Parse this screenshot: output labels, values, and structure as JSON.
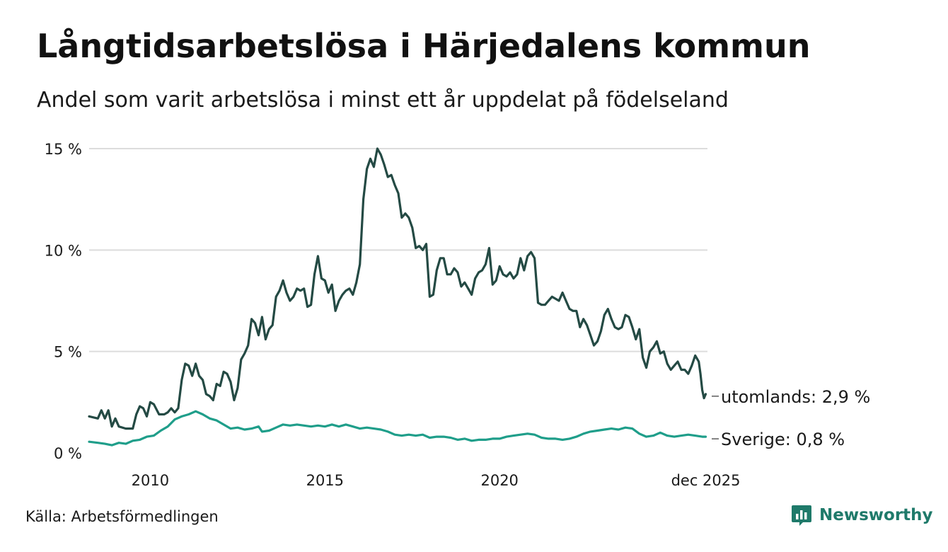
{
  "title": "Långtidsarbetslösa i Härjedalens kommun",
  "subtitle": "Andel som varit arbetslösa i minst ett år uppdelat på födelseland",
  "source": "Källa: Arbetsförmedlingen",
  "brand": {
    "name": "Newsworthy",
    "icon": "newsworthy-logo-icon",
    "color": "#1f7a6a"
  },
  "chart_data": {
    "type": "line",
    "title": "Långtidsarbetslösa i Härjedalens kommun",
    "subtitle": "Andel som varit arbetslösa i minst ett år uppdelat på födelseland",
    "xlabel": "",
    "ylabel": "",
    "ylim": [
      0,
      15
    ],
    "xlim": [
      2008.25,
      2025.95
    ],
    "y_ticks": [
      {
        "value": 0,
        "label": "0 %"
      },
      {
        "value": 5,
        "label": "5 %"
      },
      {
        "value": 10,
        "label": "10 %"
      },
      {
        "value": 15,
        "label": "15 %"
      }
    ],
    "x_ticks": [
      {
        "value": 2010,
        "label": "2010"
      },
      {
        "value": 2015,
        "label": "2015"
      },
      {
        "value": 2020,
        "label": "2020"
      },
      {
        "value": 2025.9,
        "label": "dec 2025"
      }
    ],
    "grid": true,
    "series": [
      {
        "name": "utomlands",
        "end_label": "utomlands: 2,9 %",
        "color": "#244a44",
        "points": [
          [
            2008.25,
            1.8
          ],
          [
            2008.5,
            1.7
          ],
          [
            2008.6,
            2.1
          ],
          [
            2008.7,
            1.7
          ],
          [
            2008.8,
            2.1
          ],
          [
            2008.9,
            1.3
          ],
          [
            2009.0,
            1.7
          ],
          [
            2009.1,
            1.3
          ],
          [
            2009.3,
            1.2
          ],
          [
            2009.5,
            1.2
          ],
          [
            2009.6,
            1.9
          ],
          [
            2009.7,
            2.3
          ],
          [
            2009.8,
            2.2
          ],
          [
            2009.9,
            1.8
          ],
          [
            2010.0,
            2.5
          ],
          [
            2010.1,
            2.4
          ],
          [
            2010.25,
            1.9
          ],
          [
            2010.4,
            1.9
          ],
          [
            2010.5,
            2.0
          ],
          [
            2010.6,
            2.2
          ],
          [
            2010.7,
            2.0
          ],
          [
            2010.8,
            2.2
          ],
          [
            2010.9,
            3.6
          ],
          [
            2011.0,
            4.4
          ],
          [
            2011.1,
            4.3
          ],
          [
            2011.2,
            3.8
          ],
          [
            2011.3,
            4.4
          ],
          [
            2011.4,
            3.8
          ],
          [
            2011.5,
            3.6
          ],
          [
            2011.6,
            2.9
          ],
          [
            2011.7,
            2.8
          ],
          [
            2011.8,
            2.6
          ],
          [
            2011.9,
            3.4
          ],
          [
            2012.0,
            3.3
          ],
          [
            2012.1,
            4.0
          ],
          [
            2012.2,
            3.9
          ],
          [
            2012.3,
            3.5
          ],
          [
            2012.4,
            2.6
          ],
          [
            2012.5,
            3.2
          ],
          [
            2012.6,
            4.6
          ],
          [
            2012.7,
            4.9
          ],
          [
            2012.8,
            5.3
          ],
          [
            2012.9,
            6.6
          ],
          [
            2013.0,
            6.4
          ],
          [
            2013.1,
            5.8
          ],
          [
            2013.2,
            6.7
          ],
          [
            2013.3,
            5.6
          ],
          [
            2013.4,
            6.1
          ],
          [
            2013.5,
            6.3
          ],
          [
            2013.6,
            7.7
          ],
          [
            2013.7,
            8.0
          ],
          [
            2013.8,
            8.5
          ],
          [
            2013.9,
            7.9
          ],
          [
            2014.0,
            7.5
          ],
          [
            2014.1,
            7.7
          ],
          [
            2014.2,
            8.1
          ],
          [
            2014.3,
            8.0
          ],
          [
            2014.4,
            8.1
          ],
          [
            2014.5,
            7.2
          ],
          [
            2014.6,
            7.3
          ],
          [
            2014.7,
            8.8
          ],
          [
            2014.8,
            9.7
          ],
          [
            2014.9,
            8.6
          ],
          [
            2015.0,
            8.5
          ],
          [
            2015.1,
            7.9
          ],
          [
            2015.2,
            8.3
          ],
          [
            2015.3,
            7.0
          ],
          [
            2015.4,
            7.5
          ],
          [
            2015.5,
            7.8
          ],
          [
            2015.6,
            8.0
          ],
          [
            2015.7,
            8.1
          ],
          [
            2015.8,
            7.8
          ],
          [
            2015.9,
            8.4
          ],
          [
            2016.0,
            9.3
          ],
          [
            2016.1,
            12.5
          ],
          [
            2016.2,
            14.0
          ],
          [
            2016.3,
            14.5
          ],
          [
            2016.4,
            14.1
          ],
          [
            2016.5,
            15.0
          ],
          [
            2016.6,
            14.7
          ],
          [
            2016.7,
            14.2
          ],
          [
            2016.8,
            13.6
          ],
          [
            2016.9,
            13.7
          ],
          [
            2017.0,
            13.2
          ],
          [
            2017.1,
            12.8
          ],
          [
            2017.2,
            11.6
          ],
          [
            2017.3,
            11.8
          ],
          [
            2017.4,
            11.6
          ],
          [
            2017.5,
            11.1
          ],
          [
            2017.6,
            10.1
          ],
          [
            2017.7,
            10.2
          ],
          [
            2017.8,
            10.0
          ],
          [
            2017.9,
            10.3
          ],
          [
            2018.0,
            7.7
          ],
          [
            2018.1,
            7.8
          ],
          [
            2018.2,
            9.0
          ],
          [
            2018.3,
            9.6
          ],
          [
            2018.4,
            9.6
          ],
          [
            2018.5,
            8.8
          ],
          [
            2018.6,
            8.8
          ],
          [
            2018.7,
            9.1
          ],
          [
            2018.8,
            8.9
          ],
          [
            2018.9,
            8.2
          ],
          [
            2019.0,
            8.4
          ],
          [
            2019.1,
            8.1
          ],
          [
            2019.2,
            7.8
          ],
          [
            2019.3,
            8.6
          ],
          [
            2019.4,
            8.9
          ],
          [
            2019.5,
            9.0
          ],
          [
            2019.6,
            9.3
          ],
          [
            2019.7,
            10.1
          ],
          [
            2019.8,
            8.3
          ],
          [
            2019.9,
            8.5
          ],
          [
            2020.0,
            9.2
          ],
          [
            2020.1,
            8.8
          ],
          [
            2020.2,
            8.7
          ],
          [
            2020.3,
            8.9
          ],
          [
            2020.4,
            8.6
          ],
          [
            2020.5,
            8.8
          ],
          [
            2020.6,
            9.6
          ],
          [
            2020.7,
            9.0
          ],
          [
            2020.8,
            9.7
          ],
          [
            2020.9,
            9.9
          ],
          [
            2021.0,
            9.6
          ],
          [
            2021.1,
            7.4
          ],
          [
            2021.2,
            7.3
          ],
          [
            2021.3,
            7.3
          ],
          [
            2021.4,
            7.5
          ],
          [
            2021.5,
            7.7
          ],
          [
            2021.6,
            7.6
          ],
          [
            2021.7,
            7.5
          ],
          [
            2021.8,
            7.9
          ],
          [
            2021.9,
            7.5
          ],
          [
            2022.0,
            7.1
          ],
          [
            2022.1,
            7.0
          ],
          [
            2022.2,
            7.0
          ],
          [
            2022.3,
            6.2
          ],
          [
            2022.4,
            6.6
          ],
          [
            2022.5,
            6.3
          ],
          [
            2022.6,
            5.8
          ],
          [
            2022.7,
            5.3
          ],
          [
            2022.8,
            5.5
          ],
          [
            2022.9,
            6.0
          ],
          [
            2023.0,
            6.8
          ],
          [
            2023.1,
            7.1
          ],
          [
            2023.2,
            6.6
          ],
          [
            2023.3,
            6.2
          ],
          [
            2023.4,
            6.1
          ],
          [
            2023.5,
            6.2
          ],
          [
            2023.6,
            6.8
          ],
          [
            2023.7,
            6.7
          ],
          [
            2023.8,
            6.2
          ],
          [
            2023.9,
            5.6
          ],
          [
            2024.0,
            6.1
          ],
          [
            2024.1,
            4.7
          ],
          [
            2024.2,
            4.2
          ],
          [
            2024.3,
            5.0
          ],
          [
            2024.4,
            5.2
          ],
          [
            2024.5,
            5.5
          ],
          [
            2024.6,
            4.9
          ],
          [
            2024.7,
            5.0
          ],
          [
            2024.8,
            4.4
          ],
          [
            2024.9,
            4.1
          ],
          [
            2025.0,
            4.3
          ],
          [
            2025.1,
            4.5
          ],
          [
            2025.2,
            4.1
          ],
          [
            2025.3,
            4.1
          ],
          [
            2025.4,
            3.9
          ],
          [
            2025.5,
            4.3
          ],
          [
            2025.6,
            4.8
          ],
          [
            2025.7,
            4.5
          ],
          [
            2025.75,
            3.9
          ],
          [
            2025.8,
            3.1
          ],
          [
            2025.85,
            2.7
          ],
          [
            2025.9,
            2.9
          ]
        ]
      },
      {
        "name": "Sverige",
        "end_label": "Sverige: 0,8 %",
        "color": "#1f9e8a",
        "points": [
          [
            2008.25,
            0.55
          ],
          [
            2008.5,
            0.5
          ],
          [
            2008.7,
            0.45
          ],
          [
            2008.9,
            0.38
          ],
          [
            2009.1,
            0.5
          ],
          [
            2009.3,
            0.45
          ],
          [
            2009.5,
            0.6
          ],
          [
            2009.7,
            0.65
          ],
          [
            2009.9,
            0.8
          ],
          [
            2010.1,
            0.85
          ],
          [
            2010.3,
            1.1
          ],
          [
            2010.5,
            1.3
          ],
          [
            2010.7,
            1.65
          ],
          [
            2010.9,
            1.8
          ],
          [
            2011.1,
            1.9
          ],
          [
            2011.3,
            2.05
          ],
          [
            2011.5,
            1.9
          ],
          [
            2011.7,
            1.7
          ],
          [
            2011.9,
            1.6
          ],
          [
            2012.1,
            1.4
          ],
          [
            2012.3,
            1.2
          ],
          [
            2012.5,
            1.25
          ],
          [
            2012.7,
            1.15
          ],
          [
            2012.9,
            1.2
          ],
          [
            2013.1,
            1.3
          ],
          [
            2013.2,
            1.05
          ],
          [
            2013.4,
            1.1
          ],
          [
            2013.6,
            1.25
          ],
          [
            2013.8,
            1.4
          ],
          [
            2014.0,
            1.35
          ],
          [
            2014.2,
            1.4
          ],
          [
            2014.4,
            1.35
          ],
          [
            2014.6,
            1.3
          ],
          [
            2014.8,
            1.35
          ],
          [
            2015.0,
            1.3
          ],
          [
            2015.2,
            1.4
          ],
          [
            2015.4,
            1.3
          ],
          [
            2015.6,
            1.4
          ],
          [
            2015.8,
            1.3
          ],
          [
            2016.0,
            1.2
          ],
          [
            2016.2,
            1.25
          ],
          [
            2016.4,
            1.2
          ],
          [
            2016.6,
            1.15
          ],
          [
            2016.8,
            1.05
          ],
          [
            2017.0,
            0.9
          ],
          [
            2017.2,
            0.85
          ],
          [
            2017.4,
            0.9
          ],
          [
            2017.6,
            0.85
          ],
          [
            2017.8,
            0.9
          ],
          [
            2018.0,
            0.75
          ],
          [
            2018.2,
            0.8
          ],
          [
            2018.4,
            0.8
          ],
          [
            2018.6,
            0.75
          ],
          [
            2018.8,
            0.65
          ],
          [
            2019.0,
            0.7
          ],
          [
            2019.2,
            0.6
          ],
          [
            2019.4,
            0.65
          ],
          [
            2019.6,
            0.65
          ],
          [
            2019.8,
            0.7
          ],
          [
            2020.0,
            0.7
          ],
          [
            2020.2,
            0.8
          ],
          [
            2020.4,
            0.85
          ],
          [
            2020.6,
            0.9
          ],
          [
            2020.8,
            0.95
          ],
          [
            2021.0,
            0.9
          ],
          [
            2021.2,
            0.75
          ],
          [
            2021.4,
            0.7
          ],
          [
            2021.6,
            0.7
          ],
          [
            2021.8,
            0.65
          ],
          [
            2022.0,
            0.7
          ],
          [
            2022.2,
            0.8
          ],
          [
            2022.4,
            0.95
          ],
          [
            2022.6,
            1.05
          ],
          [
            2022.8,
            1.1
          ],
          [
            2023.0,
            1.15
          ],
          [
            2023.2,
            1.2
          ],
          [
            2023.4,
            1.15
          ],
          [
            2023.6,
            1.25
          ],
          [
            2023.8,
            1.2
          ],
          [
            2024.0,
            0.95
          ],
          [
            2024.2,
            0.8
          ],
          [
            2024.4,
            0.85
          ],
          [
            2024.6,
            1.0
          ],
          [
            2024.8,
            0.85
          ],
          [
            2025.0,
            0.8
          ],
          [
            2025.2,
            0.85
          ],
          [
            2025.4,
            0.9
          ],
          [
            2025.6,
            0.85
          ],
          [
            2025.8,
            0.8
          ],
          [
            2025.9,
            0.8
          ]
        ]
      }
    ]
  }
}
